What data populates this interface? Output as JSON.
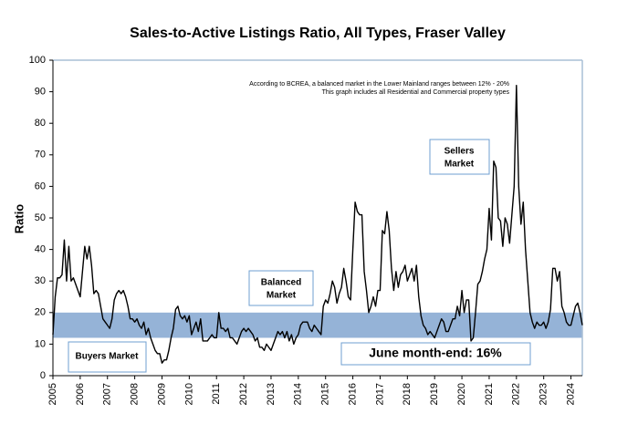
{
  "chart_data": {
    "type": "line",
    "title": "Sales-to-Active Listings Ratio, All Types, Fraser Valley",
    "ylabel": "Ratio",
    "ylim": [
      0,
      100
    ],
    "yticks": [
      0,
      10,
      20,
      30,
      40,
      50,
      60,
      70,
      80,
      90,
      100
    ],
    "band": {
      "from": 12,
      "to": 20,
      "color": "#95b3d7"
    },
    "notes": [
      "According to BCREA, a balanced market in the Lower Mainland ranges between 12% - 20%",
      "This graph includes all Residential and Commercial property types"
    ],
    "labels": {
      "sellers": [
        "Sellers",
        "Market"
      ],
      "balanced": [
        "Balanced",
        "Market"
      ],
      "buyers": "Buyers Market",
      "current": "June month-end: 16%"
    },
    "color": "#000000",
    "categories": [
      "2005",
      null,
      null,
      null,
      null,
      null,
      null,
      null,
      null,
      null,
      null,
      null,
      "2006",
      null,
      null,
      null,
      null,
      null,
      null,
      null,
      null,
      null,
      null,
      null,
      "2007",
      null,
      null,
      null,
      null,
      null,
      null,
      null,
      null,
      null,
      null,
      null,
      "2008",
      null,
      null,
      null,
      null,
      null,
      null,
      null,
      null,
      null,
      null,
      null,
      "2009",
      null,
      null,
      null,
      null,
      null,
      null,
      null,
      null,
      null,
      null,
      null,
      "2010",
      null,
      null,
      null,
      null,
      null,
      null,
      null,
      null,
      null,
      null,
      null,
      "2011",
      null,
      null,
      null,
      null,
      null,
      null,
      null,
      null,
      null,
      null,
      null,
      "2012",
      null,
      null,
      null,
      null,
      null,
      null,
      null,
      null,
      null,
      null,
      null,
      "2013",
      null,
      null,
      null,
      null,
      null,
      null,
      null,
      null,
      null,
      null,
      null,
      "2014",
      null,
      null,
      null,
      null,
      null,
      null,
      null,
      null,
      null,
      null,
      null,
      "2015",
      null,
      null,
      null,
      null,
      null,
      null,
      null,
      null,
      null,
      null,
      null,
      "2016",
      null,
      null,
      null,
      null,
      null,
      null,
      null,
      null,
      null,
      null,
      null,
      "2017",
      null,
      null,
      null,
      null,
      null,
      null,
      null,
      null,
      null,
      null,
      null,
      "2018",
      null,
      null,
      null,
      null,
      null,
      null,
      null,
      null,
      null,
      null,
      null,
      "2019",
      null,
      null,
      null,
      null,
      null,
      null,
      null,
      null,
      null,
      null,
      null,
      "2020",
      null,
      null,
      null,
      null,
      null,
      null,
      null,
      null,
      null,
      null,
      null,
      "2021",
      null,
      null,
      null,
      null,
      null,
      null,
      null,
      null,
      null,
      null,
      null,
      "2022",
      null,
      null,
      null,
      null,
      null,
      null,
      null,
      null,
      null,
      null,
      null,
      "2023",
      null,
      null,
      null,
      null,
      null,
      null,
      null,
      null,
      null,
      null,
      null,
      "2024",
      null,
      null,
      null,
      null,
      null
    ],
    "values": [
      13,
      25,
      31,
      31,
      32,
      43,
      30,
      41,
      30,
      31,
      29,
      27,
      25,
      33,
      41,
      37,
      41,
      35,
      26,
      27,
      26,
      22,
      18,
      17,
      16,
      15,
      18,
      24,
      26,
      27,
      26,
      27,
      25,
      22,
      18,
      18,
      17,
      18,
      16,
      15,
      17,
      13,
      15,
      12,
      10,
      8,
      7,
      7,
      4,
      5,
      5,
      8,
      12,
      15,
      21,
      22,
      19,
      18,
      19,
      17,
      19,
      13,
      15,
      17,
      14,
      18,
      11,
      11,
      11,
      12,
      13,
      12,
      12,
      20,
      15,
      15,
      14,
      15,
      12,
      12,
      11,
      10,
      12,
      14,
      15,
      14,
      15,
      14,
      13,
      11,
      12,
      9,
      9,
      8,
      10,
      9,
      8,
      10,
      12,
      14,
      13,
      14,
      12,
      14,
      11,
      13,
      10,
      12,
      13,
      16,
      17,
      17,
      17,
      15,
      14,
      16,
      15,
      14,
      13,
      22,
      24,
      23,
      26,
      30,
      28,
      23,
      26,
      28,
      34,
      30,
      25,
      24,
      40,
      55,
      52,
      51,
      51,
      33,
      27,
      20,
      22,
      25,
      22,
      27,
      27,
      46,
      45,
      52,
      46,
      34,
      27,
      33,
      28,
      32,
      33,
      35,
      30,
      32,
      34,
      30,
      35,
      25,
      19,
      16,
      15,
      13,
      14,
      13,
      12,
      14,
      16,
      18,
      17,
      14,
      14,
      16,
      18,
      18,
      22,
      19,
      27,
      20,
      24,
      24,
      11,
      12,
      20,
      29,
      30,
      33,
      37,
      40,
      53,
      43,
      68,
      66,
      50,
      49,
      41,
      50,
      48,
      42,
      51,
      60,
      92,
      60,
      48,
      55,
      40,
      30,
      20,
      17,
      15,
      17,
      16,
      16,
      17,
      15,
      17,
      21,
      34,
      34,
      30,
      33,
      22,
      20,
      17,
      16,
      16,
      19,
      22,
      23,
      20,
      16
    ]
  }
}
